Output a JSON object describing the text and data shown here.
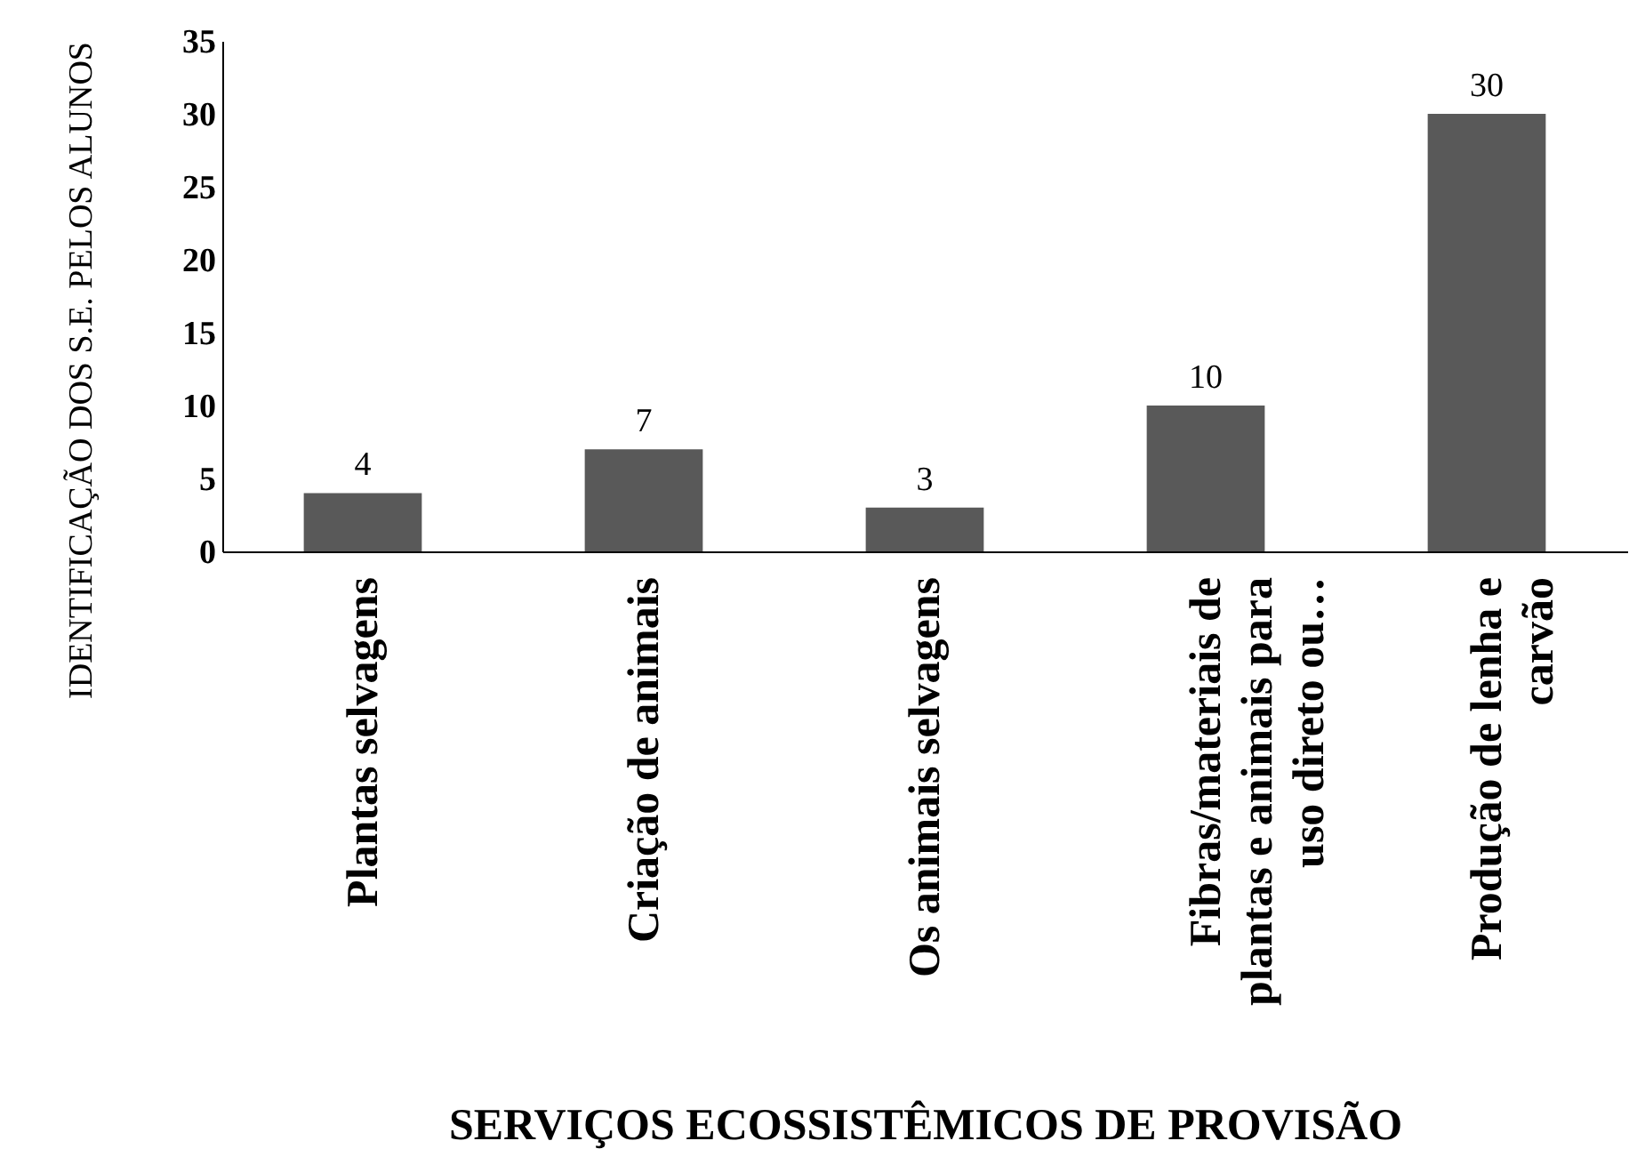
{
  "chart_data": {
    "type": "bar",
    "xlabel": "SERVIÇOS ECOSSISTÊMICOS DE PROVISÃO",
    "ylabel": "IDENTIFICAÇÃO DOS S.E. PELOS ALUNOS",
    "categories": [
      "Plantas selvagens",
      "Criação de animais",
      "Os animais selvagens",
      "Fibras/materiais de plantas e animais para uso direto ou…",
      "Produção de lenha e carvão"
    ],
    "values": [
      4,
      7,
      3,
      10,
      30
    ],
    "color": "#595959",
    "ylim": [
      0,
      35
    ],
    "yticks": [
      0,
      5,
      10,
      15,
      20,
      25,
      30,
      35
    ],
    "grid": false,
    "data_labels": true
  }
}
